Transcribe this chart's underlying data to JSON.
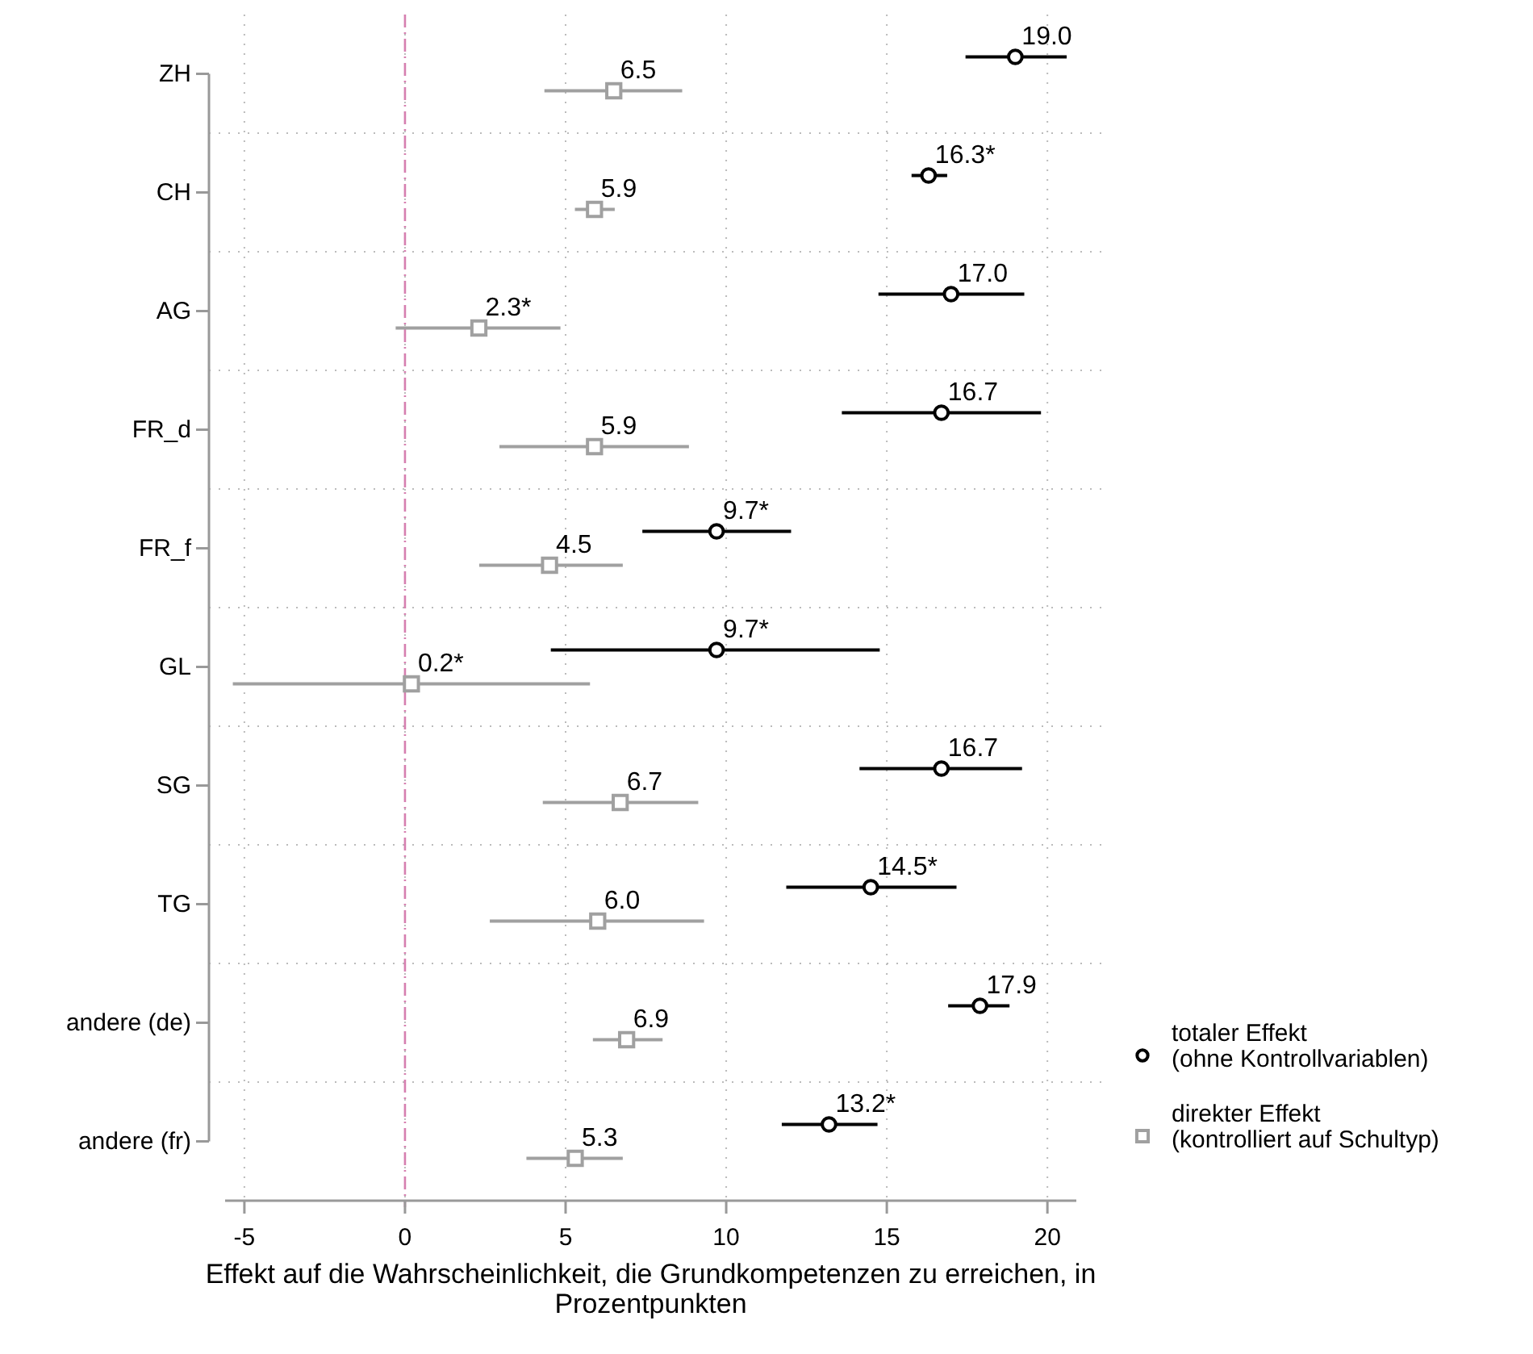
{
  "chart_data": {
    "type": "scatter",
    "orientation": "horizontal",
    "xlabel": "Effekt auf die Wahrscheinlichkeit, die Grundkompetenzen zu erreichen, in Prozentpunkten",
    "categories": [
      "ZH",
      "CH",
      "AG",
      "FR_d",
      "FR_f",
      "GL",
      "SG",
      "TG",
      "andere (de)",
      "andere (fr)"
    ],
    "xlim": [
      -5.6,
      20.9
    ],
    "xticks": [
      -5,
      0,
      5,
      10,
      15,
      20
    ],
    "grid": true,
    "legend": "right",
    "ref_lines": [
      {
        "axis": "x",
        "value": 0,
        "color": "#d67fb0",
        "line_style": "dashed"
      }
    ],
    "series": [
      {
        "name": "totaler Effekt\n(ohne Kontrollvariablen)",
        "color": "#000000",
        "marker": "circle",
        "values": [
          19.0,
          16.3,
          17.0,
          16.7,
          9.7,
          9.7,
          16.7,
          14.5,
          17.9,
          13.2
        ],
        "errors": [
          [
            17.45,
            20.6
          ],
          [
            15.77,
            16.88
          ],
          [
            14.74,
            19.28
          ],
          [
            13.6,
            19.8
          ],
          [
            7.39,
            12.02
          ],
          [
            4.54,
            14.78
          ],
          [
            14.15,
            19.21
          ],
          [
            11.87,
            17.17
          ],
          [
            16.91,
            18.82
          ],
          [
            11.73,
            14.71
          ]
        ],
        "value_labels": [
          "19.0",
          "16.3*",
          "17.0",
          "16.7",
          "9.7*",
          "9.7*",
          "16.7",
          "14.5*",
          "17.9",
          "13.2*"
        ]
      },
      {
        "name": "direkter Effekt\n(kontrolliert auf Schultyp)",
        "color": "#a0a0a0",
        "marker": "square",
        "values": [
          6.5,
          5.9,
          2.3,
          5.9,
          4.5,
          0.2,
          6.7,
          6.0,
          6.9,
          5.3
        ],
        "errors": [
          [
            4.34,
            8.63
          ],
          [
            5.29,
            6.53
          ],
          [
            -0.29,
            4.84
          ],
          [
            2.94,
            8.84
          ],
          [
            2.31,
            6.78
          ],
          [
            -5.36,
            5.76
          ],
          [
            4.29,
            9.13
          ],
          [
            2.64,
            9.31
          ],
          [
            5.85,
            8.02
          ],
          [
            3.78,
            6.78
          ]
        ],
        "value_labels": [
          "6.5",
          "5.9",
          "2.3*",
          "5.9",
          "4.5",
          "0.2*",
          "6.7",
          "6.0",
          "6.9",
          "5.3"
        ]
      }
    ]
  }
}
